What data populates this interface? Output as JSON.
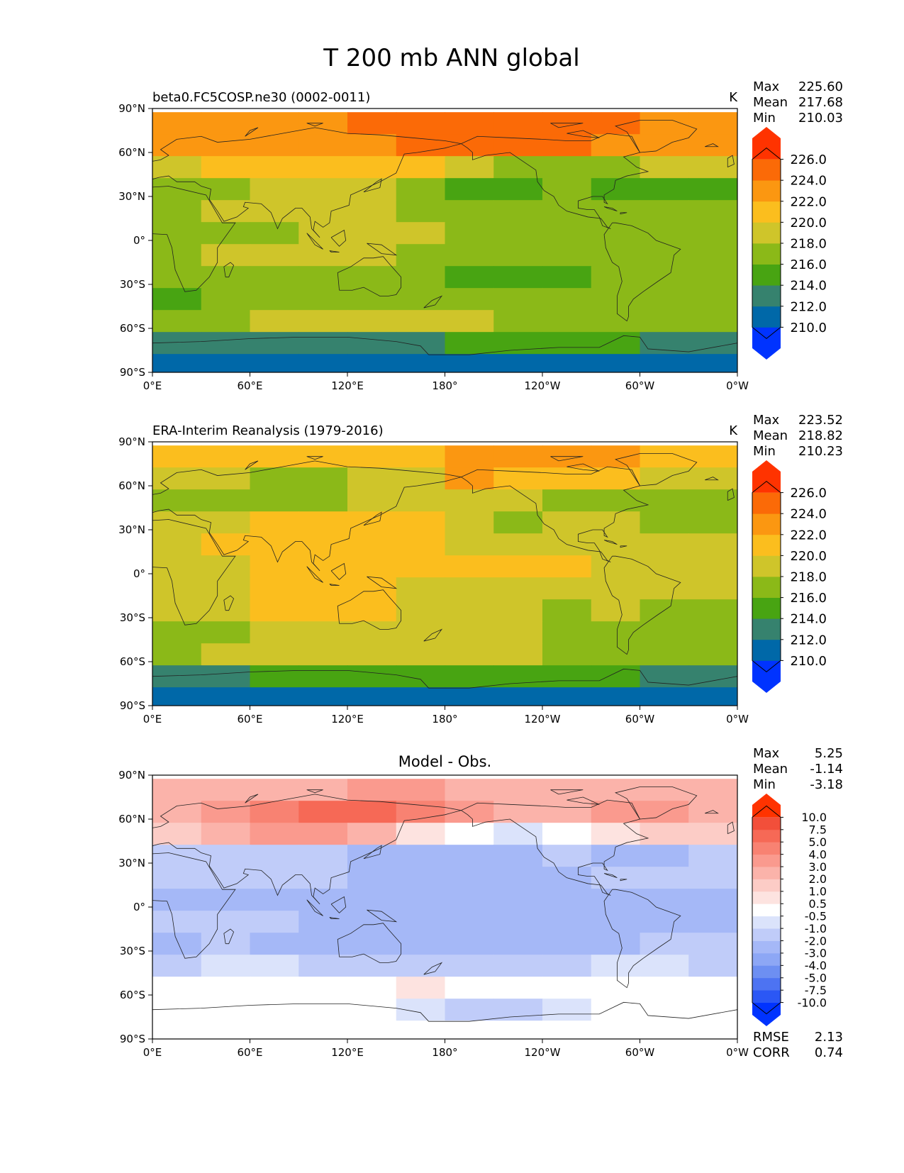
{
  "title": "T 200 mb ANN global",
  "axes": {
    "x_ticks": [
      "0°E",
      "60°E",
      "120°E",
      "180°",
      "120°W",
      "60°W",
      "0°W"
    ],
    "y_ticks": [
      "90°N",
      "60°N",
      "30°N",
      "0°",
      "30°S",
      "60°S",
      "90°S"
    ]
  },
  "panels": [
    {
      "id": "model",
      "title_left": "beta0.FC5COSP.ne30 (0002-0011)",
      "title_center": "",
      "units": "K",
      "stats": [
        {
          "label": "Max",
          "value": "225.60"
        },
        {
          "label": "Mean",
          "value": "217.68"
        },
        {
          "label": "Min",
          "value": "210.03"
        }
      ],
      "colorbar": {
        "colors": [
          "#0033ff",
          "#0068a8",
          "#36826e",
          "#48a412",
          "#8bb918",
          "#cfc52a",
          "#fbbe1e",
          "#fb9711",
          "#fb6a07",
          "#ff3300"
        ],
        "labels": [
          "210.0",
          "212.0",
          "214.0",
          "216.0",
          "218.0",
          "220.0",
          "222.0",
          "224.0",
          "226.0"
        ]
      },
      "extra_stats": []
    },
    {
      "id": "obs",
      "title_left": "ERA-Interim Reanalysis (1979-2016)",
      "title_center": "",
      "units": "K",
      "stats": [
        {
          "label": "Max",
          "value": "223.52"
        },
        {
          "label": "Mean",
          "value": "218.82"
        },
        {
          "label": "Min",
          "value": "210.23"
        }
      ],
      "colorbar": {
        "colors": [
          "#0033ff",
          "#0068a8",
          "#36826e",
          "#48a412",
          "#8bb918",
          "#cfc52a",
          "#fbbe1e",
          "#fb9711",
          "#fb6a07",
          "#ff3300"
        ],
        "labels": [
          "210.0",
          "212.0",
          "214.0",
          "216.0",
          "218.0",
          "220.0",
          "222.0",
          "224.0",
          "226.0"
        ]
      },
      "extra_stats": []
    },
    {
      "id": "diff",
      "title_left": "",
      "title_center": "Model - Obs.",
      "units": "",
      "stats": [
        {
          "label": "Max",
          "value": "5.25"
        },
        {
          "label": "Mean",
          "value": "-1.14"
        },
        {
          "label": "Min",
          "value": "-3.18"
        }
      ],
      "colorbar": {
        "colors": [
          "#0033ff",
          "#2b57f5",
          "#4d73f2",
          "#6d8ff2",
          "#8da7f5",
          "#a5b8f7",
          "#c0ccf9",
          "#dbe3fb",
          "#ffffff",
          "#fde3e0",
          "#fcccc6",
          "#fbb3aa",
          "#fa9a8e",
          "#f88272",
          "#f66956",
          "#f24f3a",
          "#ff3300"
        ],
        "labels": [
          "-10.0",
          "-7.5",
          "-5.0",
          "-4.0",
          "-3.0",
          "-2.0",
          "-1.0",
          "-0.5",
          "0.5",
          "1.0",
          "2.0",
          "3.0",
          "4.0",
          "5.0",
          "7.5",
          "10.0"
        ]
      },
      "extra_stats": [
        {
          "label": "RMSE",
          "value": "2.13"
        },
        {
          "label": "CORR",
          "value": "0.74"
        }
      ]
    }
  ],
  "chart_data": [
    {
      "type": "heatmap",
      "panel": "model",
      "title": "beta0.FC5COSP.ne30 (0002-0011)",
      "units": "K",
      "xlim": [
        0,
        360
      ],
      "ylim": [
        -90,
        90
      ],
      "x_ticks": [
        0,
        60,
        120,
        180,
        240,
        300,
        360
      ],
      "y_ticks": [
        90,
        60,
        30,
        0,
        -30,
        -60,
        -90
      ],
      "levels": [
        210,
        212,
        214,
        216,
        218,
        220,
        222,
        224,
        226
      ],
      "lat": [
        80,
        65,
        50,
        35,
        20,
        5,
        -10,
        -25,
        -40,
        -55,
        -70,
        -85
      ],
      "lon": [
        15,
        45,
        75,
        105,
        135,
        165,
        195,
        225,
        255,
        285,
        315,
        345
      ],
      "values": [
        [
          223,
          223,
          223,
          223.5,
          224.5,
          225,
          225,
          225,
          225,
          224.5,
          223.5,
          223
        ],
        [
          222,
          222,
          222,
          222,
          223,
          224,
          224.5,
          224.5,
          224,
          223.5,
          222.5,
          222
        ],
        [
          219,
          220,
          220.5,
          221,
          221.5,
          220,
          218.5,
          217.5,
          217,
          217.5,
          218,
          218
        ],
        [
          217,
          217.5,
          219,
          219,
          219,
          217,
          215.5,
          215,
          216,
          215.5,
          214,
          215
        ],
        [
          217.5,
          219,
          219,
          219,
          218.5,
          217.5,
          217,
          217,
          217,
          217,
          217,
          217
        ],
        [
          217,
          217,
          217.5,
          218,
          218,
          218,
          217,
          217,
          217,
          217,
          217,
          217
        ],
        [
          217,
          218,
          218.5,
          218.5,
          218,
          217,
          216.5,
          216.5,
          217,
          217,
          217,
          217
        ],
        [
          216,
          217,
          217.5,
          217.5,
          217.5,
          216.5,
          215.5,
          214,
          215,
          216,
          216,
          216
        ],
        [
          215.5,
          216,
          216,
          216,
          216,
          216.5,
          216.5,
          216.5,
          216.5,
          216.5,
          216.5,
          216.5
        ],
        [
          217,
          217,
          218,
          218.5,
          218.5,
          218.5,
          218,
          217.5,
          217,
          216.5,
          216.5,
          217
        ],
        [
          213.5,
          213.5,
          213.5,
          213.5,
          213.5,
          213.5,
          214,
          214,
          214,
          214,
          213.5,
          213.5
        ],
        [
          211,
          211,
          211,
          211,
          211,
          211,
          211,
          211,
          211,
          211,
          211,
          211
        ]
      ],
      "stats": {
        "max": 225.6,
        "mean": 217.68,
        "min": 210.03
      }
    },
    {
      "type": "heatmap",
      "panel": "obs",
      "title": "ERA-Interim Reanalysis (1979-2016)",
      "units": "K",
      "xlim": [
        0,
        360
      ],
      "ylim": [
        -90,
        90
      ],
      "x_ticks": [
        0,
        60,
        120,
        180,
        240,
        300,
        360
      ],
      "y_ticks": [
        90,
        60,
        30,
        0,
        -30,
        -60,
        -90
      ],
      "levels": [
        210,
        212,
        214,
        216,
        218,
        220,
        222,
        224,
        226
      ],
      "lat": [
        80,
        65,
        50,
        35,
        20,
        5,
        -10,
        -25,
        -40,
        -55,
        -70,
        -85
      ],
      "lon": [
        15,
        45,
        75,
        105,
        135,
        165,
        195,
        225,
        255,
        285,
        315,
        345
      ],
      "values": [
        [
          220.5,
          221,
          221,
          221,
          221,
          221.5,
          222.5,
          223,
          223,
          222.5,
          221.5,
          220.5
        ],
        [
          219,
          218.5,
          217.5,
          217.5,
          218.5,
          219,
          222,
          221.5,
          221.5,
          220.5,
          219.5,
          219.5
        ],
        [
          217.5,
          217.5,
          217,
          217.5,
          219,
          219.5,
          219,
          218.5,
          217.5,
          217,
          216.5,
          217
        ],
        [
          218.5,
          219.5,
          220.5,
          221,
          221.5,
          220.5,
          218.5,
          217.5,
          218,
          218.5,
          217.5,
          216.5
        ],
        [
          219.5,
          220,
          220.5,
          220.5,
          220.5,
          220,
          219.5,
          219,
          219,
          219,
          219,
          219
        ],
        [
          219.5,
          219.5,
          220,
          220.5,
          221,
          220.5,
          220,
          220,
          220,
          219.5,
          219.5,
          219
        ],
        [
          219,
          219.5,
          220.5,
          220.5,
          220.5,
          219.5,
          219.5,
          219.5,
          219,
          219,
          219,
          219
        ],
        [
          218.5,
          219,
          220,
          220.5,
          220.5,
          219.5,
          219,
          218,
          217.5,
          218,
          217.5,
          217
        ],
        [
          217,
          217.5,
          218,
          218.5,
          218.5,
          219,
          219,
          218.5,
          217.5,
          216.5,
          216.5,
          216.5
        ],
        [
          217.5,
          218.5,
          218.5,
          218.5,
          219,
          219,
          218.5,
          218,
          217,
          216.5,
          216.5,
          217
        ],
        [
          213.5,
          213.5,
          214.5,
          214.5,
          215,
          215,
          215,
          215,
          214,
          214,
          213.5,
          213.5
        ],
        [
          211,
          211,
          211,
          211,
          211,
          211,
          211,
          211,
          211,
          211,
          211,
          211
        ]
      ],
      "stats": {
        "max": 223.52,
        "mean": 218.82,
        "min": 210.23
      }
    },
    {
      "type": "heatmap",
      "panel": "diff",
      "title": "Model - Obs.",
      "units": "K",
      "xlim": [
        0,
        360
      ],
      "ylim": [
        -90,
        90
      ],
      "x_ticks": [
        0,
        60,
        120,
        180,
        240,
        300,
        360
      ],
      "y_ticks": [
        90,
        60,
        30,
        0,
        -30,
        -60,
        -90
      ],
      "levels": [
        -10,
        -7.5,
        -5,
        -4,
        -3,
        -2,
        -1,
        -0.5,
        0.5,
        1,
        2,
        3,
        4,
        5,
        7.5,
        10
      ],
      "lat": [
        80,
        65,
        50,
        35,
        20,
        5,
        -10,
        -25,
        -40,
        -55,
        -70,
        -85
      ],
      "lon": [
        15,
        45,
        75,
        105,
        135,
        165,
        195,
        225,
        255,
        285,
        315,
        345
      ],
      "values": [
        [
          2.5,
          2,
          2,
          2.5,
          3,
          3.5,
          2.5,
          2,
          2,
          2,
          2,
          2.5
        ],
        [
          2.5,
          3.5,
          4.5,
          5.5,
          5,
          4,
          3,
          2.5,
          2.5,
          3,
          3,
          2.5
        ],
        [
          1.5,
          2.5,
          3,
          3.5,
          2,
          0.7,
          -0.5,
          -1,
          -0.5,
          0.5,
          1.5,
          1.5
        ],
        [
          -1.5,
          -2,
          -1.5,
          -2,
          -2.5,
          -2.5,
          -2.5,
          -2.5,
          -2,
          -2.5,
          -3,
          -2
        ],
        [
          -1.5,
          -1.5,
          -1.5,
          -1.5,
          -2.5,
          -2.5,
          -2.5,
          -2.5,
          -2.5,
          -2,
          -2,
          -2
        ],
        [
          -2.5,
          -2.5,
          -2.5,
          -2.5,
          -2.5,
          -2.5,
          -2.5,
          -2.5,
          -2.5,
          -2.5,
          -2.5,
          -2.5
        ],
        [
          -2,
          -1.5,
          -2,
          -2.5,
          -2.5,
          -2.5,
          -2.5,
          -2.5,
          -2.5,
          -2.5,
          -2.5,
          -2.5
        ],
        [
          -2.5,
          -2,
          -2.5,
          -2.5,
          -2.5,
          -3,
          -3,
          -3,
          -2.5,
          -2.5,
          -2,
          -1.5
        ],
        [
          -1.5,
          -1,
          -1,
          -1.5,
          -1.5,
          -1.5,
          -1.5,
          -2,
          -2,
          -1,
          -1,
          -1.5
        ],
        [
          0,
          -0.2,
          0,
          0.2,
          0.2,
          0.5,
          0.3,
          0.2,
          0,
          0,
          0,
          0
        ],
        [
          0,
          0,
          -0.5,
          -0.5,
          -0.3,
          -1,
          -1.5,
          -1.5,
          -1,
          -0.5,
          -0.2,
          0
        ],
        [
          0,
          0,
          0,
          0,
          0,
          -0.5,
          -0.5,
          -0.5,
          -0.5,
          -0.5,
          0,
          0
        ]
      ],
      "stats": {
        "max": 5.25,
        "mean": -1.14,
        "min": -3.18,
        "rmse": 2.13,
        "corr": 0.74
      }
    }
  ]
}
